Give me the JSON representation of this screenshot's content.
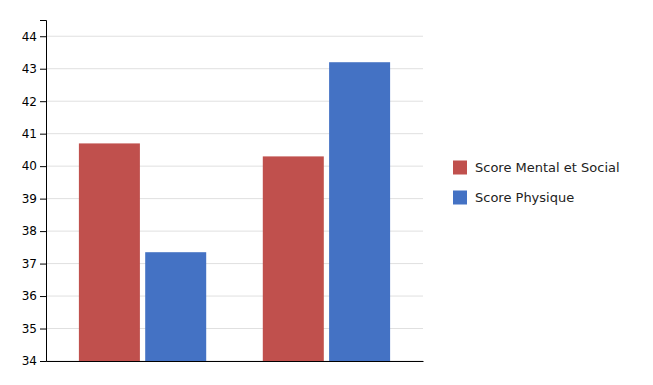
{
  "chart_data": {
    "type": "bar",
    "categories": [
      null,
      null
    ],
    "series": [
      {
        "name": "Score Mental et Social",
        "color": "#C0504D",
        "values": [
          40.7,
          40.3
        ]
      },
      {
        "name": "Score Physique",
        "color": "#4472C4",
        "values": [
          37.35,
          43.2
        ]
      }
    ],
    "ylim": [
      34,
      44.5
    ],
    "yticks": [
      34,
      35,
      36,
      37,
      38,
      39,
      40,
      41,
      42,
      43,
      44
    ],
    "grid": true,
    "legend": "right",
    "tick_labels": "y"
  }
}
